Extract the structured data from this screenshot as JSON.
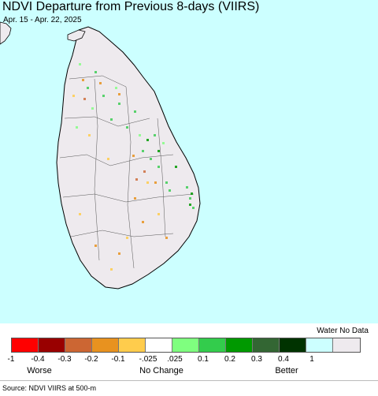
{
  "header": {
    "title": "NDVI Departure from Previous 8-days (VIIRS)",
    "subtitle": "Apr. 15 - Apr. 22, 2025"
  },
  "map": {
    "ocean_color": "#ccffff",
    "land_color": "#eeeaee",
    "border_color": "#000000"
  },
  "legend": {
    "no_data_label": "Water No Data",
    "swatch_colors": [
      "#ff0000",
      "#990000",
      "#cc6633",
      "#e8921f",
      "#ffcc4c",
      "#ffffff",
      "#7fff7f",
      "#33cc4c",
      "#009900",
      "#336633",
      "#003300",
      "#ccffff",
      "#eeeaee"
    ],
    "ticks": [
      "-1",
      "-0.4",
      "-0.3",
      "-0.2",
      "-0.1",
      "-.025",
      ".025",
      "0.1",
      "0.2",
      "0.3",
      "0.4",
      "1"
    ],
    "categories": {
      "worse": "Worse",
      "no_change": "No Change",
      "better": "Better"
    }
  },
  "footer": {
    "source": "Source: NDVI VIIRS at 500-m"
  }
}
